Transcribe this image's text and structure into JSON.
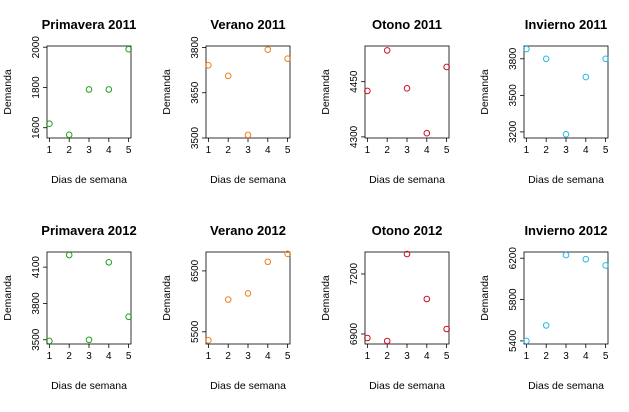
{
  "chart_data": [
    {
      "type": "scatter",
      "title": "Primavera 2011",
      "xlabel": "Dias de semana",
      "ylabel": "Demanda",
      "x": [
        1,
        2,
        3,
        4,
        5
      ],
      "y": [
        1620,
        1565,
        1790,
        1790,
        1990
      ],
      "xlim": [
        0.88,
        5.12
      ],
      "ylim": [
        1549,
        2006
      ],
      "xticks": [
        1,
        2,
        3,
        4,
        5
      ],
      "yticks": [
        1600,
        1800,
        2000
      ],
      "color": "#22a020"
    },
    {
      "type": "scatter",
      "title": "Verano 2011",
      "xlabel": "Dias de semana",
      "ylabel": "Demanda",
      "x": [
        1,
        2,
        3,
        4,
        5
      ],
      "y": [
        3741,
        3706,
        3510,
        3793,
        3763
      ],
      "xlim": [
        0.88,
        5.12
      ],
      "ylim": [
        3500,
        3805
      ],
      "xticks": [
        1,
        2,
        3,
        4,
        5
      ],
      "yticks": [
        3500,
        3650,
        3800
      ],
      "color": "#f07f1c"
    },
    {
      "type": "scatter",
      "title": "Otono 2011",
      "xlabel": "Dias de semana",
      "ylabel": "Demanda",
      "x": [
        1,
        2,
        3,
        4,
        5
      ],
      "y": [
        4425,
        4535,
        4432,
        4310,
        4490
      ],
      "xlim": [
        0.88,
        5.12
      ],
      "ylim": [
        4297,
        4547
      ],
      "xticks": [
        1,
        2,
        3,
        4,
        5
      ],
      "yticks": [
        4300,
        4450
      ],
      "color": "#cc1020"
    },
    {
      "type": "scatter",
      "title": "Invierno 2011",
      "xlabel": "Dias de semana",
      "ylabel": "Demanda",
      "x": [
        1,
        2,
        3,
        4,
        5
      ],
      "y": [
        3880,
        3800,
        3180,
        3650,
        3800
      ],
      "xlim": [
        0.88,
        5.12
      ],
      "ylim": [
        3150,
        3905
      ],
      "xticks": [
        1,
        2,
        3,
        4,
        5
      ],
      "yticks": [
        3200,
        3500,
        3800
      ],
      "color": "#2ab8e8"
    },
    {
      "type": "scatter",
      "title": "Primavera 2012",
      "xlabel": "Dias de semana",
      "ylabel": "Demanda",
      "x": [
        1,
        2,
        3,
        4,
        5
      ],
      "y": [
        3490,
        4200,
        3500,
        4140,
        3690
      ],
      "xlim": [
        0.88,
        5.12
      ],
      "ylim": [
        3465,
        4225
      ],
      "xticks": [
        1,
        2,
        3,
        4,
        5
      ],
      "yticks": [
        3500,
        3800,
        4100
      ],
      "color": "#22a020"
    },
    {
      "type": "scatter",
      "title": "Verano 2012",
      "xlabel": "Dias de semana",
      "ylabel": "Demanda",
      "x": [
        1,
        2,
        3,
        4,
        5
      ],
      "y": [
        5360,
        6030,
        6130,
        6650,
        6780
      ],
      "xlim": [
        0.88,
        5.12
      ],
      "ylim": [
        5300,
        6810
      ],
      "xticks": [
        1,
        2,
        3,
        4,
        5
      ],
      "yticks": [
        5500,
        6500
      ],
      "color": "#f07f1c"
    },
    {
      "type": "scatter",
      "title": "Otono 2012",
      "xlabel": "Dias de semana",
      "ylabel": "Demanda",
      "x": [
        1,
        2,
        3,
        4,
        5
      ],
      "y": [
        6880,
        6865,
        7300,
        7075,
        6925
      ],
      "xlim": [
        0.88,
        5.12
      ],
      "ylim": [
        6850,
        7310
      ],
      "xticks": [
        1,
        2,
        3,
        4,
        5
      ],
      "yticks": [
        6900,
        7200
      ],
      "color": "#cc1020"
    },
    {
      "type": "scatter",
      "title": "Invierno 2012",
      "xlabel": "Dias de semana",
      "ylabel": "Demanda",
      "x": [
        1,
        2,
        3,
        4,
        5
      ],
      "y": [
        5400,
        5550,
        6230,
        6190,
        6130
      ],
      "xlim": [
        0.88,
        5.12
      ],
      "ylim": [
        5370,
        6260
      ],
      "xticks": [
        1,
        2,
        3,
        4,
        5
      ],
      "yticks": [
        5400,
        5800,
        6200
      ],
      "color": "#2ab8e8"
    }
  ]
}
